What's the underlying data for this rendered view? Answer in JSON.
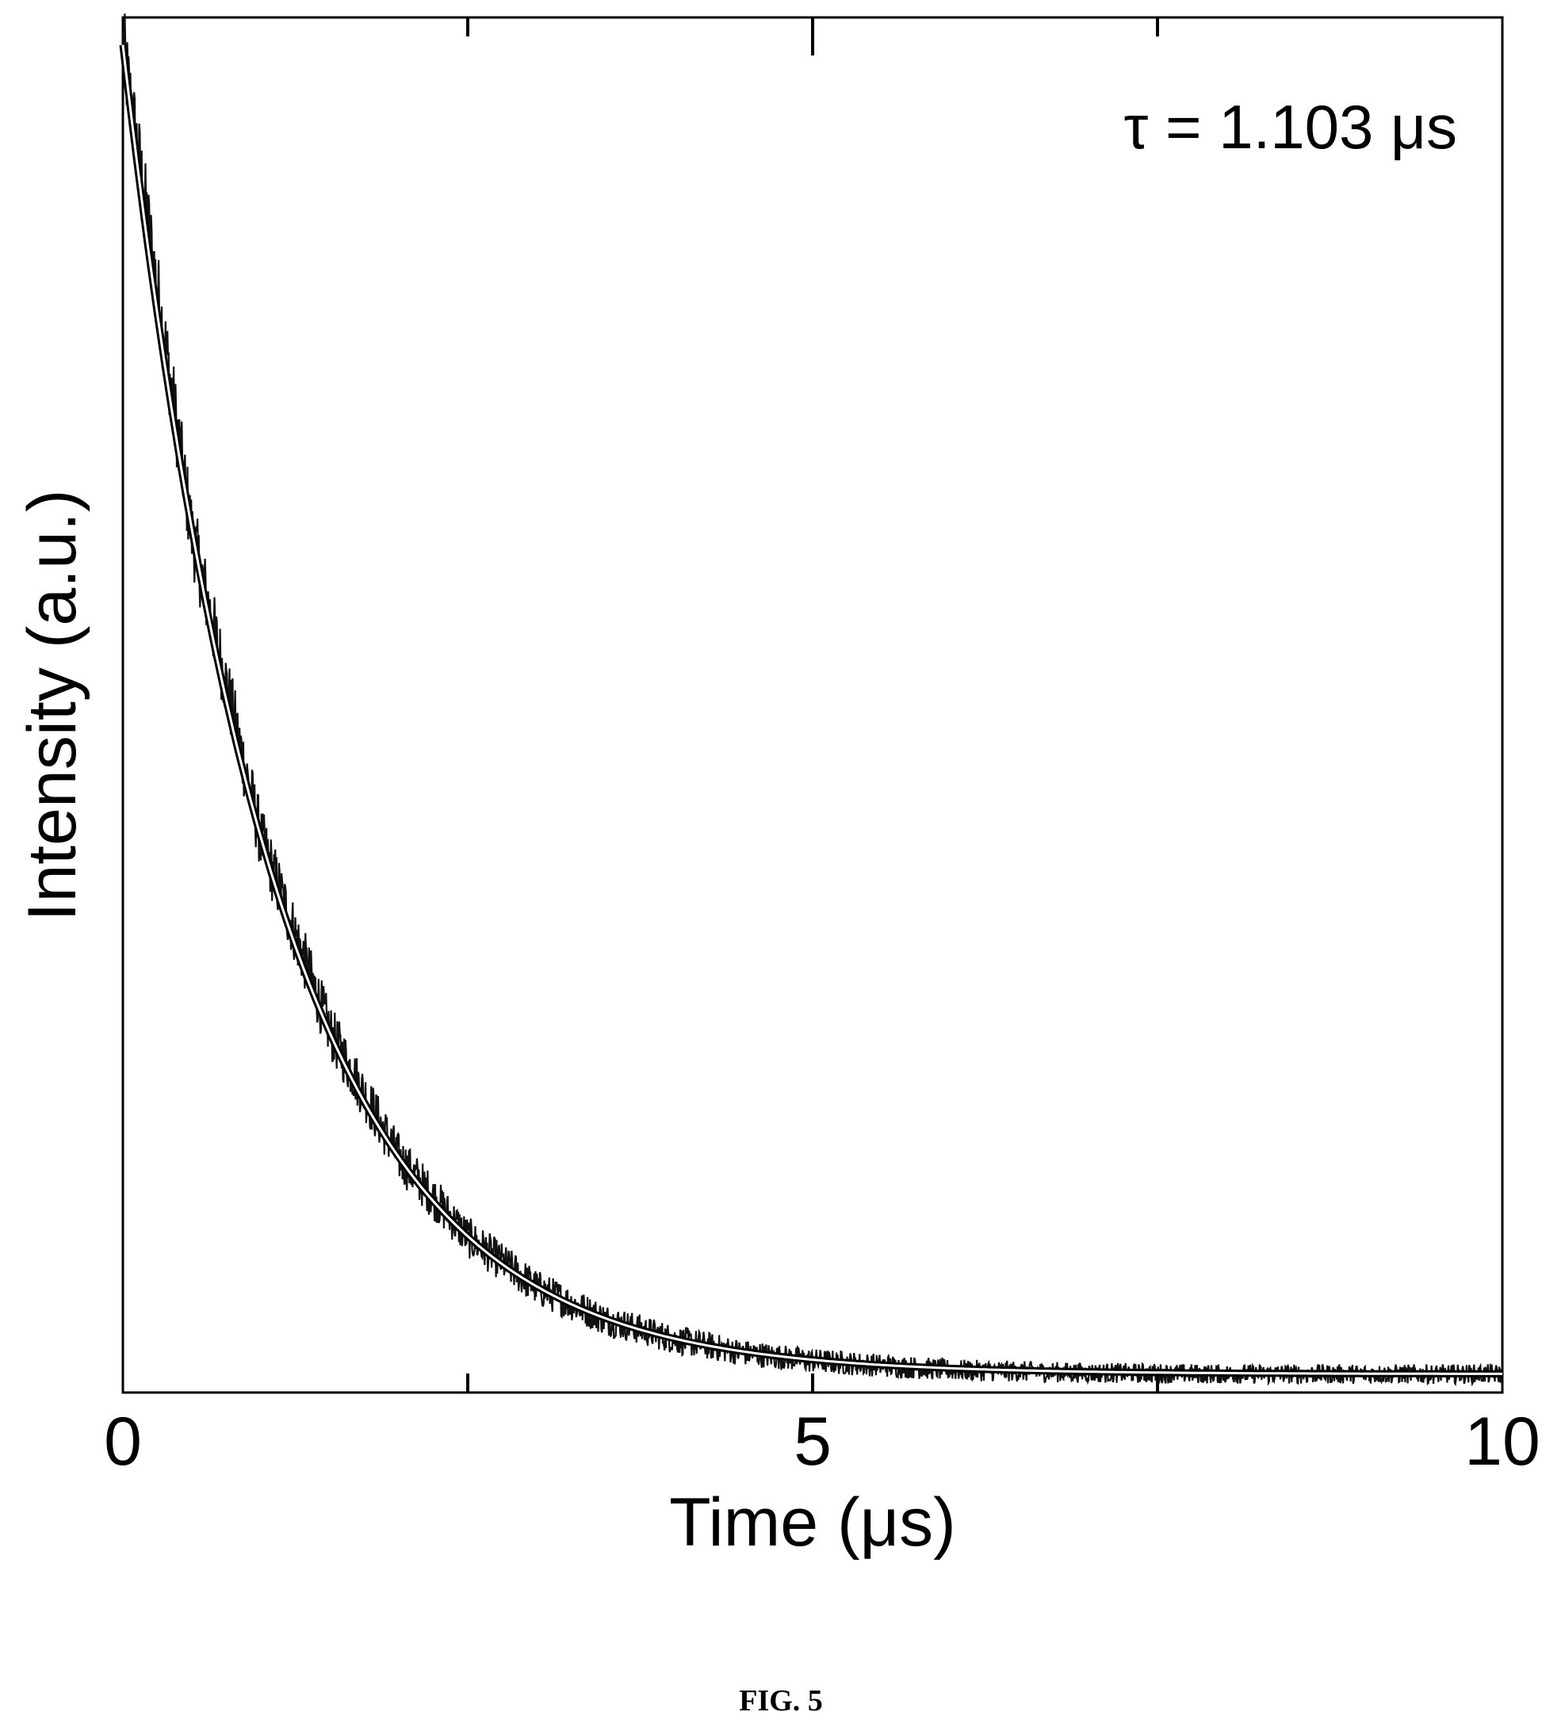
{
  "figure": {
    "caption": "FIG. 5"
  },
  "chart_data": {
    "type": "line",
    "title": "",
    "xlabel": "Time (μs)",
    "ylabel": "Intensity (a.u.)",
    "xlim": [
      0,
      10
    ],
    "ylim": [
      0,
      1
    ],
    "x_ticks": [
      0,
      5,
      10
    ],
    "x_tick_labels": [
      "0",
      "5",
      "10"
    ],
    "y_ticks": [],
    "grid": false,
    "legend": "none",
    "annotation": "τ = 1.103 μs",
    "series": [
      {
        "kind": "measured-noisy-decay",
        "x": [
          0,
          0.5,
          1,
          1.5,
          2,
          2.5,
          3,
          3.5,
          4,
          4.5,
          5,
          6,
          7,
          8,
          9,
          10
        ],
        "y": [
          1.0,
          0.635,
          0.405,
          0.26,
          0.165,
          0.105,
          0.067,
          0.043,
          0.028,
          0.018,
          0.012,
          0.005,
          0.003,
          0.002,
          0.002,
          0.002
        ]
      },
      {
        "kind": "single-exponential-fit",
        "amplitude": 1.0,
        "tau": 1.103,
        "offset": 0.002
      }
    ],
    "colors": {
      "data": "#111111",
      "fit": "#ffffff",
      "axes": "#000000"
    }
  }
}
